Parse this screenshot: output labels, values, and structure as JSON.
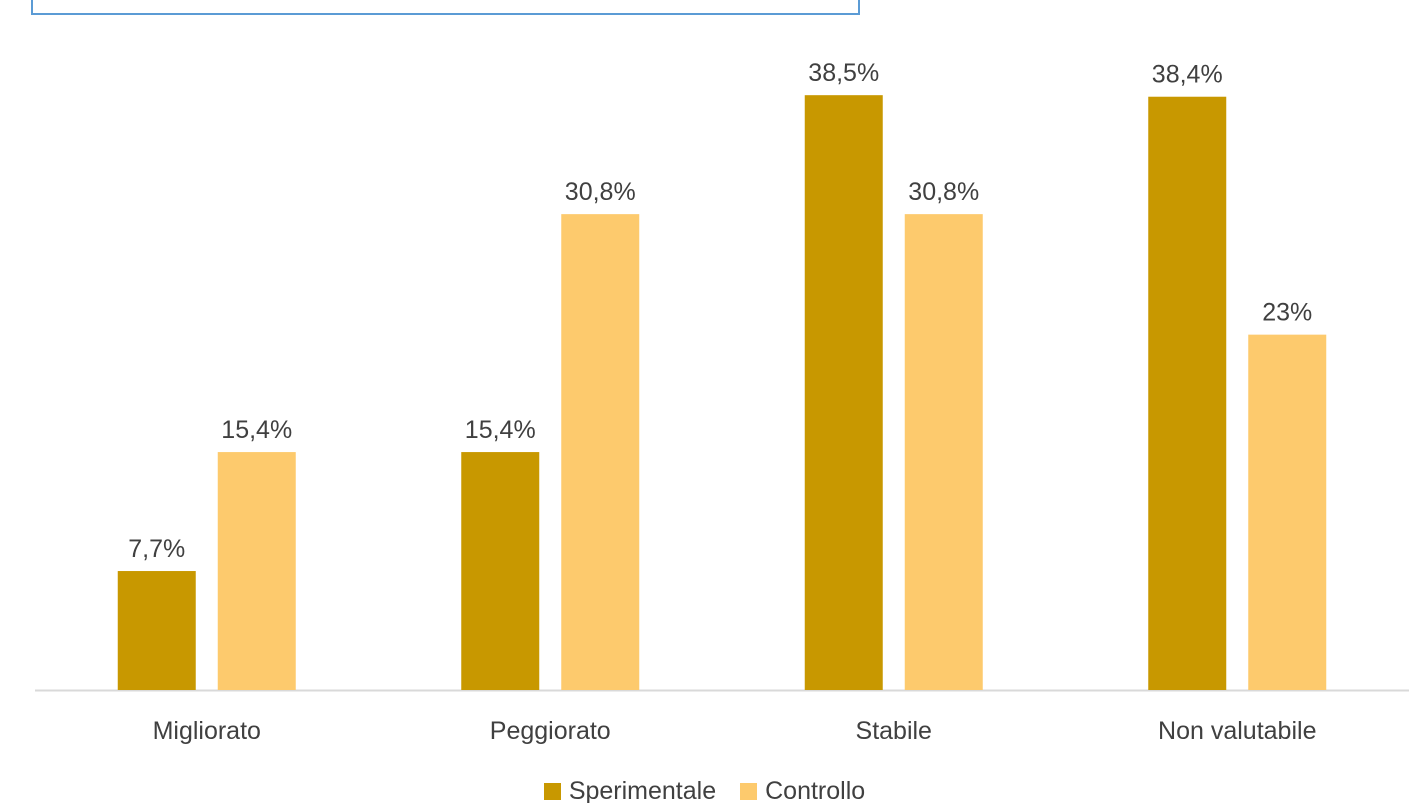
{
  "colors": {
    "sperimentale": "#c89800",
    "controllo": "#fdca6d",
    "axis": "#d9d9d9",
    "text": "#404040",
    "frame": "#5b9bd5"
  },
  "chart_data": {
    "type": "bar",
    "categories": [
      "Migliorato",
      "Peggiorato",
      "Stabile",
      "Non valutabile"
    ],
    "series": [
      {
        "name": "Sperimentale",
        "values": [
          7.7,
          15.4,
          38.5,
          38.4
        ],
        "labels": [
          "7,7%",
          "15,4%",
          "38,5%",
          "38,4%"
        ]
      },
      {
        "name": "Controllo",
        "values": [
          15.4,
          30.8,
          30.8,
          23
        ],
        "labels": [
          "15,4%",
          "30,8%",
          "30,8%",
          "23%"
        ]
      }
    ],
    "ylim": [
      0,
      45
    ],
    "grid": false,
    "legend": "bottom"
  }
}
